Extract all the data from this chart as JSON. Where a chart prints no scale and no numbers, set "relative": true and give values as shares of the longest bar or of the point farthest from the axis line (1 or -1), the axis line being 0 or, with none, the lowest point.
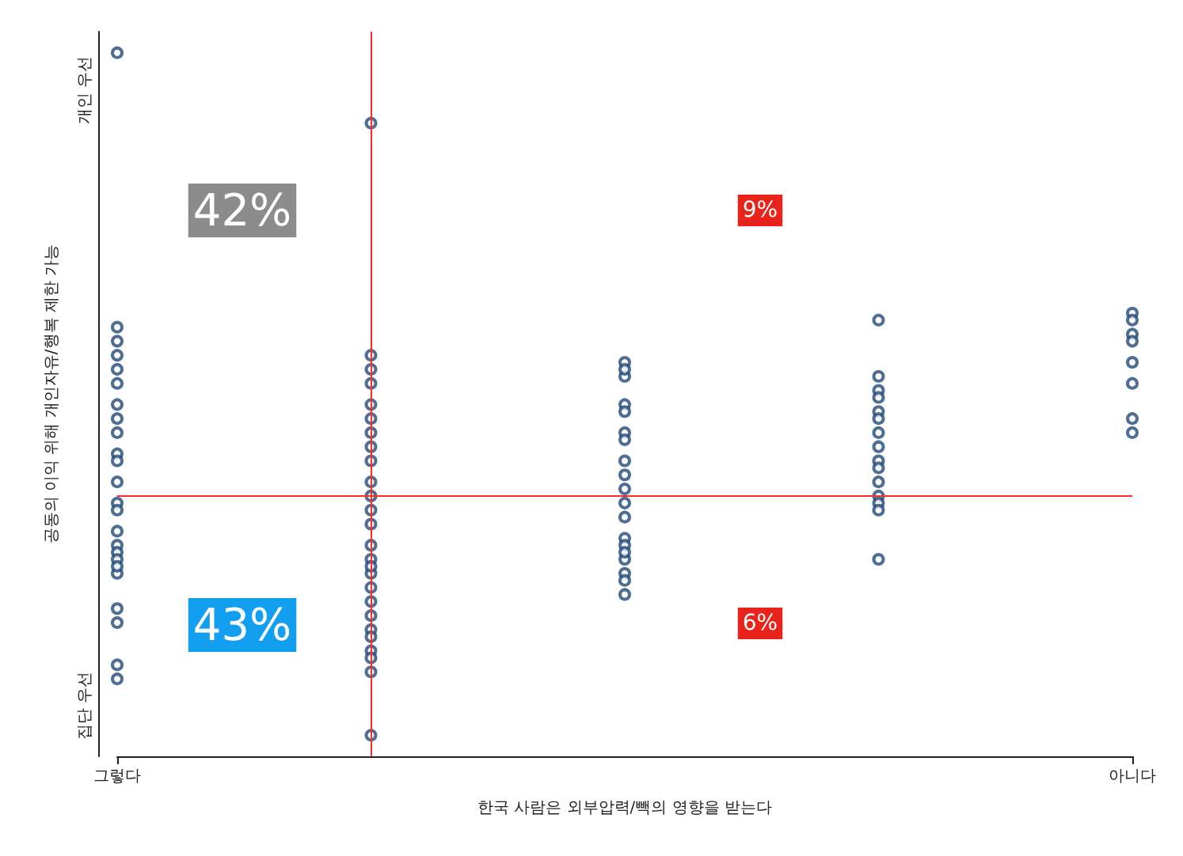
{
  "chart_data": {
    "type": "scatter",
    "relative": true,
    "xlabel": "한국 사람은 외부압력/빽의 영향을 받는다",
    "ylabel": "공동의 이익 위해 개인자유/행복 제한 가능",
    "categories": [
      "그렇다",
      null,
      null,
      null,
      "아니다"
    ],
    "grid": false,
    "marker": "circle",
    "color": "#234a78",
    "series": [
      {
        "values": [
          1.0,
          0.9,
          0.56,
          0.62,
          0.63
        ]
      },
      {
        "values": [
          0.61,
          0.57,
          0.54,
          0.54,
          0.62
        ]
      },
      {
        "values": [
          0.59,
          0.55,
          0.5,
          0.52,
          0.6
        ]
      },
      {
        "values": [
          0.57,
          0.53,
          0.49,
          0.51,
          0.59
        ]
      },
      {
        "values": [
          0.55,
          0.5,
          0.46,
          0.49,
          0.56
        ]
      },
      {
        "values": [
          0.53,
          0.48,
          0.45,
          0.48,
          0.53
        ]
      },
      {
        "values": [
          0.5,
          0.46,
          0.42,
          0.46,
          0.48
        ]
      },
      {
        "values": [
          0.48,
          0.44,
          0.4,
          0.44,
          0.46
        ]
      },
      {
        "values": [
          0.46,
          0.42,
          0.38,
          0.42,
          null
        ]
      },
      {
        "values": [
          0.43,
          0.39,
          0.36,
          0.41,
          null
        ]
      },
      {
        "values": [
          0.42,
          0.37,
          0.34,
          0.39,
          null
        ]
      },
      {
        "values": [
          0.39,
          0.35,
          0.31,
          0.37,
          null
        ]
      },
      {
        "values": [
          0.36,
          0.33,
          0.3,
          0.36,
          null
        ]
      },
      {
        "values": [
          0.35,
          0.3,
          0.28,
          0.35,
          null
        ]
      },
      {
        "values": [
          0.32,
          0.28,
          0.26,
          0.28,
          null
        ]
      },
      {
        "values": [
          0.3,
          0.26,
          0.25,
          null,
          null
        ]
      },
      {
        "values": [
          0.29,
          null,
          0.23,
          null,
          null
        ]
      },
      {
        "values": [
          0.28,
          null,
          0.55,
          null,
          null
        ]
      },
      {
        "values": [
          0.26,
          null,
          0.29,
          null,
          null
        ]
      },
      {
        "values": [
          0.21,
          0.18,
          null,
          null,
          null
        ]
      },
      {
        "values": [
          0.19,
          null,
          null,
          null,
          null
        ]
      },
      {
        "values": [
          0.13,
          0.15,
          null,
          null,
          null
        ]
      },
      {
        "values": [
          0.11,
          0.12,
          null,
          null,
          null
        ]
      },
      {
        "values": [
          0.27,
          0.03,
          null,
          null,
          null
        ]
      },
      {
        "values": [
          null,
          0.22,
          null,
          null,
          null
        ]
      },
      {
        "values": [
          null,
          0.24,
          null,
          null,
          null
        ]
      },
      {
        "values": [
          null,
          0.2,
          null,
          null,
          null
        ]
      },
      {
        "values": [
          null,
          0.17,
          null,
          null,
          null
        ]
      },
      {
        "values": [
          null,
          0.14,
          null,
          null,
          null
        ]
      },
      {
        "values": [
          null,
          0.27,
          null,
          null,
          null
        ]
      }
    ],
    "ref_lines": [
      {
        "axis": "y",
        "value": 0.37,
        "color": "#ff2a2a"
      }
    ],
    "annotations": [
      "개인 우선",
      "집단 우선",
      "42%",
      "43%",
      "9%",
      "6%"
    ]
  }
}
